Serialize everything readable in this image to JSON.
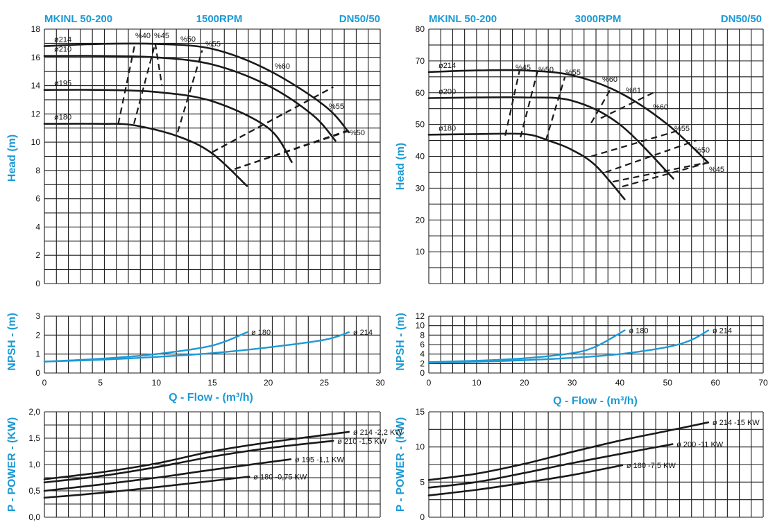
{
  "colors": {
    "accent": "#1c9ad6",
    "curve": "#1a1a1a",
    "grid": "#1a1a1a"
  },
  "chart_data": [
    {
      "id": "head1500",
      "type": "line",
      "title_left": "MKINL 50-200",
      "title_center": "1500RPM",
      "title_right": "DN50/50",
      "ylabel": "Head (m)",
      "xlim": [
        0,
        30
      ],
      "ylim": [
        0,
        18
      ],
      "yticks": [
        0,
        2,
        4,
        6,
        8,
        10,
        12,
        14,
        16,
        18
      ],
      "grid": true,
      "series": [
        {
          "name": "ø214",
          "x": [
            0,
            5,
            10,
            15,
            20,
            25,
            27.2
          ],
          "y": [
            16.8,
            16.95,
            16.95,
            16.6,
            15.1,
            12.6,
            10.7
          ]
        },
        {
          "name": "ø210",
          "x": [
            0,
            5,
            10,
            15,
            20,
            24,
            26
          ],
          "y": [
            16.1,
            16.1,
            16.0,
            15.5,
            14.0,
            11.9,
            10.1
          ]
        },
        {
          "name": "ø195",
          "x": [
            0,
            5,
            10,
            15,
            20,
            22.1
          ],
          "y": [
            13.7,
            13.7,
            13.55,
            12.9,
            11.0,
            8.6
          ]
        },
        {
          "name": "ø180",
          "x": [
            0,
            5,
            8,
            12,
            15,
            18.1
          ],
          "y": [
            11.3,
            11.3,
            11.2,
            10.4,
            9.2,
            6.9
          ]
        }
      ],
      "efficiency_lines": [
        {
          "name": "%40",
          "x": [
            6.6,
            8.1
          ],
          "y": [
            11.3,
            17.0
          ]
        },
        {
          "name": "%45",
          "x": [
            8,
            9.9
          ],
          "y": [
            11.3,
            17.0
          ]
        },
        {
          "name": "%50",
          "x": [
            11.9,
            14.1
          ],
          "y": [
            10.7,
            16.5
          ]
        },
        {
          "name": "%55",
          "x": [
            15,
            25.8
          ],
          "y": [
            9.3,
            13.9
          ]
        },
        {
          "name": "%50",
          "x": [
            17,
            27.2
          ],
          "y": [
            8.1,
            10.8
          ]
        }
      ],
      "efficiency_labels": [
        "%40",
        "%45",
        "%50",
        "%55",
        "%60",
        "%55",
        "%50"
      ]
    },
    {
      "id": "npsh1500",
      "type": "line",
      "ylabel": "NPSH - (m)",
      "xlabel": "Q - Flow - (m³/h)",
      "xlim": [
        0,
        30
      ],
      "ylim": [
        0,
        3
      ],
      "xticks": [
        0,
        5,
        10,
        15,
        20,
        25,
        30
      ],
      "yticks": [
        0,
        1,
        2,
        3
      ],
      "grid": true,
      "series": [
        {
          "name": "ø 180",
          "x": [
            0,
            5,
            10,
            15,
            18.1
          ],
          "y": [
            0.6,
            0.75,
            1.0,
            1.45,
            2.15
          ]
        },
        {
          "name": "ø 214",
          "x": [
            0,
            5,
            10,
            15,
            20,
            25,
            27.2
          ],
          "y": [
            0.6,
            0.7,
            0.85,
            1.05,
            1.35,
            1.75,
            2.15
          ]
        }
      ]
    },
    {
      "id": "power1500",
      "type": "line",
      "ylabel": "P - POWER - (KW)",
      "xlim": [
        0,
        30
      ],
      "ylim": [
        0,
        2
      ],
      "yticks": [
        "0,0",
        "0,5",
        "1,0",
        "1,5",
        "2,0"
      ],
      "grid": true,
      "series": [
        {
          "name": "ø 214 -2,2 KW",
          "x": [
            0,
            5,
            10,
            15,
            20,
            27.2
          ],
          "y": [
            0.72,
            0.85,
            1.02,
            1.25,
            1.42,
            1.62
          ]
        },
        {
          "name": "ø 210 -1,5 KW",
          "x": [
            0,
            5,
            10,
            15,
            20,
            25.8
          ],
          "y": [
            0.66,
            0.78,
            0.95,
            1.15,
            1.31,
            1.45
          ]
        },
        {
          "name": "ø 195 -1,1 KW",
          "x": [
            0,
            5,
            10,
            15,
            22
          ],
          "y": [
            0.5,
            0.62,
            0.75,
            0.9,
            1.1
          ]
        },
        {
          "name": "ø 180 -0,75 KW",
          "x": [
            0,
            5,
            10,
            18.3
          ],
          "y": [
            0.37,
            0.46,
            0.57,
            0.77
          ]
        }
      ]
    },
    {
      "id": "head3000",
      "type": "line",
      "title_left": "MKINL 50-200",
      "title_center": "3000RPM",
      "title_right": "DN50/50",
      "ylabel": "Head (m)",
      "xlim": [
        0,
        70
      ],
      "ylim": [
        0,
        80
      ],
      "yticks": [
        10,
        20,
        30,
        40,
        50,
        60,
        70,
        80
      ],
      "grid": true,
      "series": [
        {
          "name": "ø214",
          "x": [
            0,
            10,
            20,
            30,
            40,
            50,
            58.5
          ],
          "y": [
            66.5,
            67.0,
            67.0,
            65.5,
            60.0,
            50.0,
            38.0
          ]
        },
        {
          "name": "ø200",
          "x": [
            0,
            10,
            20,
            30,
            40,
            51.2
          ],
          "y": [
            58.3,
            58.5,
            58.5,
            57.5,
            50.0,
            33.0
          ]
        },
        {
          "name": "ø180",
          "x": [
            0,
            10,
            20,
            25,
            30,
            35,
            41
          ],
          "y": [
            46.8,
            47.0,
            47.0,
            45.0,
            42.0,
            37.0,
            26.5
          ]
        }
      ],
      "efficiency_lines": [
        {
          "name": "%45",
          "x": [
            16,
            19
          ],
          "y": [
            46.5,
            67.0
          ]
        },
        {
          "name": "%50",
          "x": [
            19.2,
            22.8
          ],
          "y": [
            46.0,
            67.0
          ]
        },
        {
          "name": "%55",
          "x": [
            24.5,
            28.5
          ],
          "y": [
            45.0,
            65.0
          ]
        },
        {
          "name": "%60",
          "x": [
            34,
            38
          ],
          "y": [
            50.5,
            61.0
          ]
        },
        {
          "name": "%45",
          "x": [
            40.5,
            58.5
          ],
          "y": [
            30.5,
            38.0
          ]
        }
      ],
      "efficiency_labels": [
        "%45",
        "%50",
        "%55",
        "%60",
        "%61",
        "%60",
        "%55",
        "%50",
        "%45"
      ]
    },
    {
      "id": "npsh3000",
      "type": "line",
      "ylabel": "NPSH - (m)",
      "xlabel": "Q - Flow - (m³/h)",
      "xlim": [
        0,
        70
      ],
      "ylim": [
        0,
        12
      ],
      "xticks": [
        0,
        10,
        20,
        30,
        40,
        50,
        60,
        70
      ],
      "yticks": [
        0,
        2,
        4,
        6,
        8,
        10,
        12
      ],
      "grid": true,
      "series": [
        {
          "name": "ø 180",
          "x": [
            0,
            10,
            20,
            30,
            35,
            41
          ],
          "y": [
            2.3,
            2.6,
            3.1,
            4.2,
            5.6,
            9.0
          ]
        },
        {
          "name": "ø 214",
          "x": [
            0,
            10,
            20,
            30,
            40,
            50,
            55,
            58.5
          ],
          "y": [
            2.2,
            2.4,
            2.7,
            3.2,
            4.0,
            5.5,
            7.0,
            9.0
          ]
        }
      ]
    },
    {
      "id": "power3000",
      "type": "line",
      "ylabel": "P - POWER - (KW)",
      "xlim": [
        0,
        70
      ],
      "ylim": [
        0,
        15
      ],
      "yticks": [
        0,
        5,
        10,
        15
      ],
      "grid": true,
      "series": [
        {
          "name": "ø 214 -15 KW",
          "x": [
            0,
            10,
            20,
            30,
            40,
            50,
            58.5
          ],
          "y": [
            5.3,
            6.2,
            7.6,
            9.3,
            10.9,
            12.3,
            13.5
          ]
        },
        {
          "name": "ø 200 -11 KW",
          "x": [
            0,
            10,
            20,
            30,
            40,
            51
          ],
          "y": [
            4.2,
            5.0,
            6.3,
            7.7,
            9.0,
            10.4
          ]
        },
        {
          "name": "ø 180 -7,5 KW",
          "x": [
            0,
            10,
            20,
            30,
            40.5
          ],
          "y": [
            3.1,
            3.9,
            4.9,
            6.0,
            7.4
          ]
        }
      ]
    }
  ]
}
